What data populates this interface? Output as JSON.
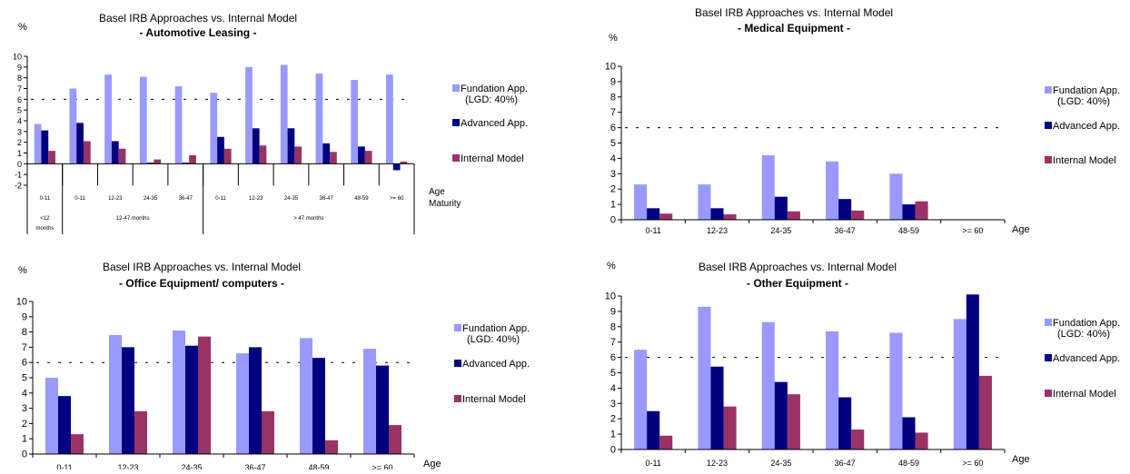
{
  "colors": {
    "foundation": "#9999FF",
    "advanced": "#000080",
    "internal": "#993366",
    "axis": "#000000",
    "reference_line": "#000000"
  },
  "chart_data": [
    {
      "type": "bar",
      "title": "Basel IRB Approaches vs. Internal Model",
      "subtitle": "- Automotive Leasing -",
      "ylabel": "%",
      "xlabel": "Age Maturity",
      "ylim": [
        -2,
        10
      ],
      "yticks": [
        -2,
        -1,
        0,
        1,
        2,
        3,
        4,
        5,
        6,
        7,
        8,
        9,
        10
      ],
      "reference_line": 6,
      "categories": [
        "0-11",
        "0-11",
        "12-23",
        "24-35",
        "36-47",
        "0-11",
        "12-23",
        "24-35",
        "36-47",
        "48-59",
        ">= 60"
      ],
      "groups": [
        {
          "label": "<12 months",
          "span": 1
        },
        {
          "label": "12-47 months",
          "span": 4
        },
        {
          "label": "> 47 months",
          "span": 6
        }
      ],
      "legend": "right",
      "legend_labels": [
        "Fundation App. (LGD: 40%)",
        "Advanced App.",
        "Internal Model"
      ],
      "series": [
        {
          "name": "Fundation App. (LGD: 40%)",
          "values": [
            3.7,
            7.0,
            8.3,
            8.1,
            7.2,
            6.6,
            9.0,
            9.2,
            8.4,
            7.8,
            8.3
          ]
        },
        {
          "name": "Advanced App.",
          "values": [
            3.1,
            3.8,
            2.1,
            0.1,
            0.1,
            2.5,
            3.3,
            3.3,
            1.9,
            1.6,
            -0.6
          ]
        },
        {
          "name": "Internal Model",
          "values": [
            1.2,
            2.1,
            1.4,
            0.4,
            0.8,
            1.4,
            1.7,
            1.6,
            1.1,
            1.2,
            0.2
          ]
        }
      ]
    },
    {
      "type": "bar",
      "title": "Basel IRB Approaches vs. Internal Model",
      "subtitle": "- Medical Equipment -",
      "ylabel": "%",
      "xlabel": "Age",
      "ylim": [
        0,
        10
      ],
      "yticks": [
        0,
        1,
        2,
        3,
        4,
        5,
        6,
        7,
        8,
        9,
        10
      ],
      "reference_line": 6,
      "categories": [
        "0-11",
        "12-23",
        "24-35",
        "36-47",
        "48-59",
        ">= 60"
      ],
      "legend": "right",
      "legend_labels": [
        "Fundation App. (LGD: 40%)",
        "Advanced App.",
        "Internal Model"
      ],
      "series": [
        {
          "name": "Fundation App. (LGD: 40%)",
          "values": [
            2.3,
            2.3,
            4.2,
            3.8,
            3.0,
            0
          ]
        },
        {
          "name": "Advanced App.",
          "values": [
            0.75,
            0.75,
            1.5,
            1.35,
            1.0,
            0
          ]
        },
        {
          "name": "Internal Model",
          "values": [
            0.4,
            0.35,
            0.55,
            0.6,
            1.2,
            0
          ]
        }
      ]
    },
    {
      "type": "bar",
      "title": "Basel IRB Approaches vs. Internal Model",
      "subtitle": "- Office Equipment/ computers -",
      "ylabel": "%",
      "xlabel": "Age",
      "ylim": [
        0,
        10
      ],
      "yticks": [
        0,
        1,
        2,
        3,
        4,
        5,
        6,
        7,
        8,
        9,
        10
      ],
      "reference_line": 6,
      "categories": [
        "0-11",
        "12-23",
        "24-35",
        "36-47",
        "48-59",
        ">= 60"
      ],
      "legend": "right",
      "legend_labels": [
        "Fundation App. (LGD: 40%)",
        "Advanced App.",
        "Internal Model"
      ],
      "series": [
        {
          "name": "Fundation App. (LGD: 40%)",
          "values": [
            5.0,
            7.8,
            8.1,
            6.6,
            7.6,
            6.9
          ]
        },
        {
          "name": "Advanced App.",
          "values": [
            3.8,
            7.0,
            7.1,
            7.0,
            6.3,
            5.8
          ]
        },
        {
          "name": "Internal Model",
          "values": [
            1.3,
            2.8,
            7.7,
            2.8,
            0.9,
            1.9
          ]
        }
      ]
    },
    {
      "type": "bar",
      "title": "Basel IRB Approaches vs. Internal Model",
      "subtitle": "- Other Equipment -",
      "ylabel": "%",
      "xlabel": "Age",
      "ylim": [
        0,
        10
      ],
      "yticks": [
        0,
        1,
        2,
        3,
        4,
        5,
        6,
        7,
        8,
        9,
        10
      ],
      "reference_line": 6,
      "categories": [
        "0-11",
        "12-23",
        "24-35",
        "36-47",
        "48-59",
        ">= 60"
      ],
      "legend": "right",
      "legend_labels": [
        "Fundation App. (LGD: 40%)",
        "Advanced App.",
        "Internal Model"
      ],
      "series": [
        {
          "name": "Fundation App. (LGD: 40%)",
          "values": [
            6.5,
            9.3,
            8.3,
            7.7,
            7.6,
            8.5
          ]
        },
        {
          "name": "Advanced App.",
          "values": [
            2.5,
            5.4,
            4.4,
            3.4,
            2.1,
            10.1
          ]
        },
        {
          "name": "Internal Model",
          "values": [
            0.9,
            2.8,
            3.6,
            1.3,
            1.1,
            4.8
          ]
        }
      ]
    }
  ]
}
